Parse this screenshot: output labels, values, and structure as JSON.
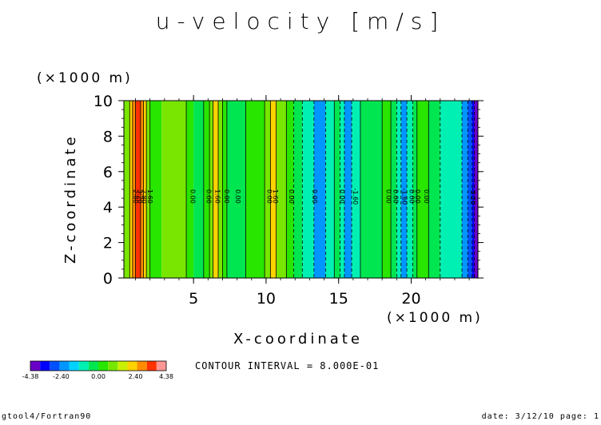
{
  "chart_data": {
    "type": "heatmap",
    "title": "u-velocity [m/s]",
    "xlabel": "X-coordinate",
    "ylabel": "Z-coordinate",
    "x_unit": "(×1000 m)",
    "y_unit": "(×1000 m)",
    "xlim": [
      0.2,
      24.6
    ],
    "ylim": [
      0,
      10
    ],
    "x_ticks": [
      5,
      10,
      15,
      20
    ],
    "y_ticks": [
      0,
      2,
      4,
      6,
      8,
      10
    ],
    "x_tick_labels": [
      "5",
      "10",
      "15",
      "20"
    ],
    "y_tick_labels": [
      "0",
      "2",
      "4",
      "6",
      "8",
      "10"
    ],
    "contour_interval_text": "CONTOUR INTERVAL = 8.000E-01",
    "contour_interval": 0.8,
    "shading_levels": [
      -4.38,
      -2.4,
      0.0,
      2.4,
      4.38
    ],
    "colorbar_labels": [
      "-4.38",
      "-2.40",
      "0.00",
      "2.40",
      "4.38"
    ],
    "colorbar_colors": [
      "#6a00c8",
      "#0000ff",
      "#0050ff",
      "#0096ff",
      "#00d2ff",
      "#00f0b4",
      "#00e650",
      "#28e600",
      "#78e600",
      "#c8f000",
      "#ffd200",
      "#ff8c00",
      "#ff3200",
      "#ff9696"
    ],
    "columns": [
      {
        "x0": 0.2,
        "x1": 0.6,
        "value": 1.2
      },
      {
        "x0": 0.6,
        "x1": 0.8,
        "value": 2.0
      },
      {
        "x0": 0.8,
        "x1": 1.0,
        "value": 2.8
      },
      {
        "x0": 1.0,
        "x1": 1.35,
        "value": 3.6
      },
      {
        "x0": 1.35,
        "x1": 1.55,
        "value": 2.8
      },
      {
        "x0": 1.55,
        "x1": 1.75,
        "value": 2.0
      },
      {
        "x0": 1.75,
        "x1": 2.0,
        "value": 1.2
      },
      {
        "x0": 2.0,
        "x1": 2.8,
        "value": 0.4
      },
      {
        "x0": 2.8,
        "x1": 4.5,
        "value": 0.8
      },
      {
        "x0": 4.5,
        "x1": 5.0,
        "value": 0.3
      },
      {
        "x0": 5.0,
        "x1": 5.7,
        "value": -0.4
      },
      {
        "x0": 5.7,
        "x1": 6.1,
        "value": 0.4
      },
      {
        "x0": 6.1,
        "x1": 6.35,
        "value": 1.2
      },
      {
        "x0": 6.35,
        "x1": 6.7,
        "value": 2.0
      },
      {
        "x0": 6.7,
        "x1": 7.0,
        "value": 1.2
      },
      {
        "x0": 7.0,
        "x1": 7.3,
        "value": 0.4
      },
      {
        "x0": 7.3,
        "x1": 8.6,
        "value": -0.4
      },
      {
        "x0": 8.6,
        "x1": 9.9,
        "value": 0.4
      },
      {
        "x0": 9.9,
        "x1": 10.3,
        "value": 1.2
      },
      {
        "x0": 10.3,
        "x1": 10.7,
        "value": 2.0
      },
      {
        "x0": 10.7,
        "x1": 11.4,
        "value": 1.2
      },
      {
        "x0": 11.4,
        "x1": 11.9,
        "value": 0.4
      },
      {
        "x0": 11.9,
        "x1": 12.5,
        "value": -0.4
      },
      {
        "x0": 12.5,
        "x1": 13.3,
        "value": -1.2
      },
      {
        "x0": 13.3,
        "x1": 14.1,
        "value": -2.0
      },
      {
        "x0": 14.1,
        "x1": 14.7,
        "value": -1.2
      },
      {
        "x0": 14.7,
        "x1": 15.1,
        "value": -0.4
      },
      {
        "x0": 15.1,
        "x1": 15.4,
        "value": -1.2
      },
      {
        "x0": 15.4,
        "x1": 15.9,
        "value": -2.0
      },
      {
        "x0": 15.9,
        "x1": 16.5,
        "value": -1.2
      },
      {
        "x0": 16.5,
        "x1": 18.0,
        "value": -0.4
      },
      {
        "x0": 18.0,
        "x1": 18.6,
        "value": 0.4
      },
      {
        "x0": 18.6,
        "x1": 19.0,
        "value": -0.4
      },
      {
        "x0": 19.0,
        "x1": 19.3,
        "value": -1.2
      },
      {
        "x0": 19.3,
        "x1": 19.7,
        "value": -2.0
      },
      {
        "x0": 19.7,
        "x1": 20.1,
        "value": -1.2
      },
      {
        "x0": 20.1,
        "x1": 20.4,
        "value": -0.4
      },
      {
        "x0": 20.4,
        "x1": 21.2,
        "value": 0.4
      },
      {
        "x0": 21.2,
        "x1": 22.0,
        "value": -0.4
      },
      {
        "x0": 22.0,
        "x1": 23.5,
        "value": -1.2
      },
      {
        "x0": 23.5,
        "x1": 23.9,
        "value": -2.0
      },
      {
        "x0": 23.9,
        "x1": 24.2,
        "value": -2.8
      },
      {
        "x0": 24.2,
        "x1": 24.35,
        "value": -3.6
      },
      {
        "x0": 24.35,
        "x1": 24.6,
        "value": -4.2
      }
    ],
    "contour_lines": [
      {
        "x": 0.6,
        "dashed": false
      },
      {
        "x": 0.8,
        "dashed": false
      },
      {
        "x": 1.0,
        "dashed": false
      },
      {
        "x": 1.35,
        "dashed": false
      },
      {
        "x": 1.55,
        "dashed": false
      },
      {
        "x": 1.75,
        "dashed": false
      },
      {
        "x": 2.0,
        "dashed": false
      },
      {
        "x": 4.5,
        "dashed": false
      },
      {
        "x": 5.7,
        "dashed": false
      },
      {
        "x": 6.1,
        "dashed": false
      },
      {
        "x": 6.35,
        "dashed": false
      },
      {
        "x": 6.7,
        "dashed": false
      },
      {
        "x": 7.0,
        "dashed": false
      },
      {
        "x": 7.3,
        "dashed": false
      },
      {
        "x": 8.6,
        "dashed": false
      },
      {
        "x": 9.9,
        "dashed": false
      },
      {
        "x": 10.3,
        "dashed": false
      },
      {
        "x": 10.7,
        "dashed": false
      },
      {
        "x": 11.4,
        "dashed": false
      },
      {
        "x": 11.9,
        "dashed": true
      },
      {
        "x": 12.5,
        "dashed": true
      },
      {
        "x": 13.3,
        "dashed": true
      },
      {
        "x": 14.1,
        "dashed": true
      },
      {
        "x": 14.7,
        "dashed": false
      },
      {
        "x": 15.1,
        "dashed": true
      },
      {
        "x": 15.4,
        "dashed": true
      },
      {
        "x": 15.9,
        "dashed": true
      },
      {
        "x": 16.5,
        "dashed": false
      },
      {
        "x": 18.0,
        "dashed": false
      },
      {
        "x": 18.6,
        "dashed": false
      },
      {
        "x": 19.0,
        "dashed": true
      },
      {
        "x": 19.3,
        "dashed": true
      },
      {
        "x": 19.7,
        "dashed": true
      },
      {
        "x": 20.1,
        "dashed": true
      },
      {
        "x": 20.4,
        "dashed": false
      },
      {
        "x": 21.2,
        "dashed": false
      },
      {
        "x": 22.0,
        "dashed": true
      },
      {
        "x": 23.5,
        "dashed": true
      },
      {
        "x": 23.9,
        "dashed": true
      },
      {
        "x": 24.2,
        "dashed": true
      },
      {
        "x": 24.35,
        "dashed": true
      }
    ],
    "contour_labels": [
      {
        "x": 0.85,
        "text": "2.80"
      },
      {
        "x": 1.15,
        "text": "3.20"
      },
      {
        "x": 1.45,
        "text": "2.80"
      },
      {
        "x": 1.85,
        "text": "1.60"
      },
      {
        "x": 4.8,
        "text": "0.00"
      },
      {
        "x": 5.9,
        "text": "0.00"
      },
      {
        "x": 6.5,
        "text": "1.60"
      },
      {
        "x": 7.15,
        "text": "0.00"
      },
      {
        "x": 7.9,
        "text": "0.00"
      },
      {
        "x": 10.1,
        "text": "0.00"
      },
      {
        "x": 10.5,
        "text": "1.60"
      },
      {
        "x": 11.6,
        "text": "0.00"
      },
      {
        "x": 13.2,
        "text": "0.00"
      },
      {
        "x": 15.1,
        "text": "0.00"
      },
      {
        "x": 16.0,
        "text": "-1.60"
      },
      {
        "x": 18.3,
        "text": "0.00"
      },
      {
        "x": 18.8,
        "text": "0.00"
      },
      {
        "x": 19.4,
        "text": "-1.60"
      },
      {
        "x": 19.9,
        "text": "0.00"
      },
      {
        "x": 20.3,
        "text": "0.00"
      },
      {
        "x": 20.9,
        "text": "0.00"
      },
      {
        "x": 24.1,
        "text": "-3.20"
      }
    ],
    "contour_label_z": 4.6,
    "grid": false
  },
  "footer": {
    "left": "gtool4/Fortran90",
    "right": "date: 3/12/10 page: 1"
  }
}
